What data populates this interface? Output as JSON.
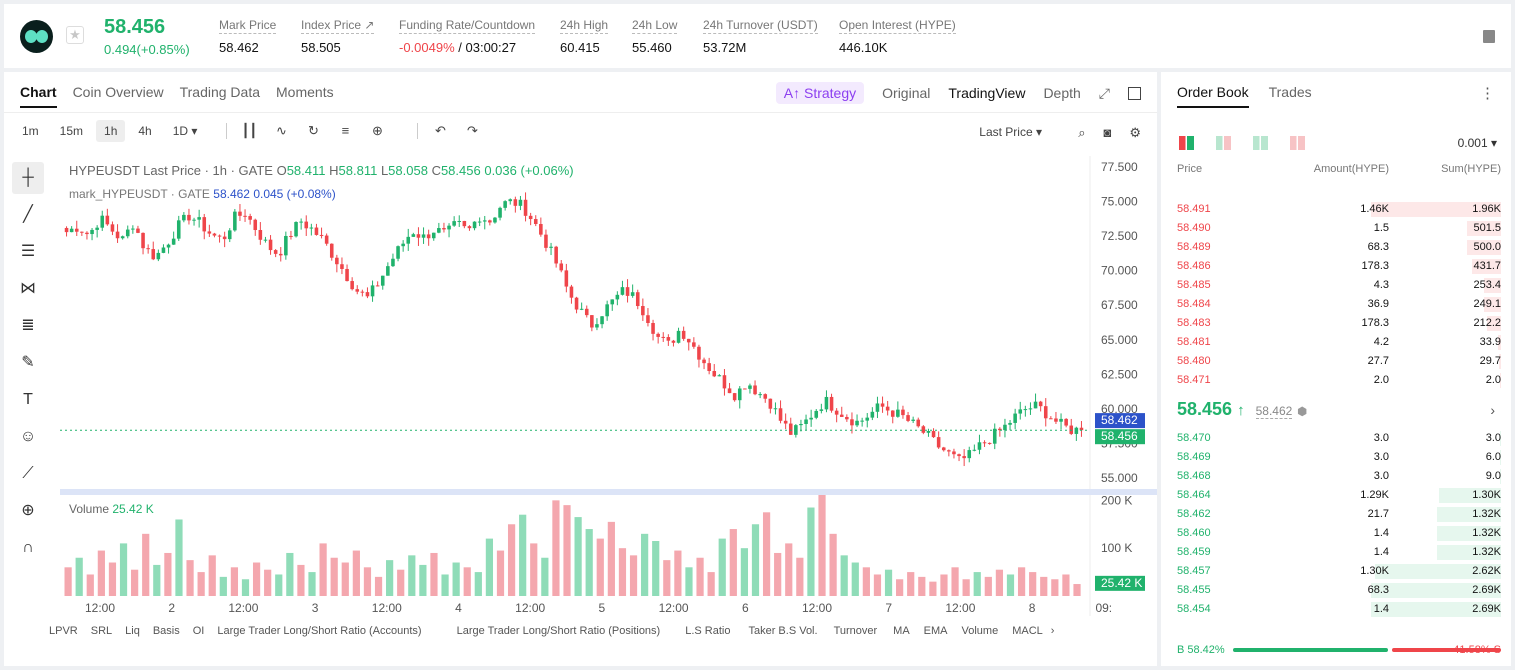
{
  "header": {
    "last_price": "58.456",
    "change": "0.494(+0.85%)",
    "stats": [
      {
        "label": "Mark Price",
        "value": "58.462"
      },
      {
        "label": "Index Price ↗",
        "value": "58.505"
      },
      {
        "label": "Funding Rate/Countdown",
        "value_neg": "-0.0049%",
        "value": " / 03:00:27"
      },
      {
        "label": "24h High",
        "value": "60.415"
      },
      {
        "label": "24h Low",
        "value": "55.460"
      },
      {
        "label": "24h Turnover (USDT)",
        "value": "53.72M"
      },
      {
        "label": "Open Interest (HYPE)",
        "value": "446.10K"
      }
    ]
  },
  "chart_tabs": [
    "Chart",
    "Coin Overview",
    "Trading Data",
    "Moments"
  ],
  "chart_views": {
    "strategy": "A↑ Strategy",
    "original": "Original",
    "tradingview": "TradingView",
    "depth": "Depth"
  },
  "timeframes": [
    "1m",
    "15m",
    "1h",
    "4h",
    "1D ▾"
  ],
  "last_price_select": "Last Price ▾",
  "legend": {
    "title": "HYPEUSDT Last Price · 1h · GATE ",
    "o_lbl": "O",
    "o": "58.411",
    "h_lbl": "H",
    "h": "58.811",
    "l_lbl": "L",
    "l": "58.058",
    "c_lbl": "C",
    "c": "58.456",
    "chg": "0.036 (+0.06%)",
    "mark_name": "mark_HYPEUSDT · GATE",
    "mark_val": "58.462",
    "mark_chg": "0.045 (+0.08%)"
  },
  "volume_legend": {
    "label": "Volume",
    "value": "25.42 K"
  },
  "indicators": [
    "LPVR",
    "SRL",
    "Liq",
    "Basis",
    "OI",
    "Large Trader Long/Short Ratio (Accounts)",
    "Large Trader Long/Short Ratio (Positions)",
    "L.S Ratio",
    "Taker B.S Vol.",
    "Turnover",
    "MA",
    "EMA",
    "Volume",
    "MACL"
  ],
  "chart_data": {
    "type": "candlestick",
    "y_ticks": [
      "77.500",
      "75.000",
      "72.500",
      "70.000",
      "67.500",
      "65.000",
      "62.500",
      "60.000",
      "57.500",
      "55.000"
    ],
    "ylim": [
      54.2,
      78.3
    ],
    "x_ticks": [
      "12:00",
      "2",
      "12:00",
      "3",
      "12:00",
      "4",
      "12:00",
      "5",
      "12:00",
      "6",
      "12:00",
      "7",
      "12:00",
      "8",
      "09:"
    ],
    "mark_price_tag": "58.462",
    "last_price_tag": "58.456",
    "close_path": [
      72.8,
      73.2,
      72.6,
      73.8,
      73.0,
      72.2,
      73.5,
      71.6,
      71.0,
      72.0,
      73.2,
      74.0,
      73.4,
      72.6,
      72.2,
      73.8,
      74.2,
      73.0,
      71.8,
      71.2,
      72.6,
      73.6,
      73.0,
      72.2,
      71.0,
      69.8,
      68.6,
      68.0,
      69.2,
      70.6,
      71.8,
      72.9,
      72.4,
      73.0,
      72.6,
      73.4,
      72.8,
      74.0,
      73.6,
      74.8,
      75.0,
      74.6,
      73.4,
      72.0,
      70.4,
      68.4,
      67.2,
      66.0,
      67.0,
      67.8,
      68.6,
      68.0,
      66.8,
      65.2,
      64.6,
      65.8,
      64.8,
      63.6,
      62.6,
      61.8,
      61.0,
      62.0,
      61.2,
      60.6,
      59.2,
      58.2,
      58.8,
      59.8,
      60.6,
      60.0,
      59.4,
      59.0,
      59.6,
      60.2,
      59.8,
      59.4,
      58.8,
      58.2,
      57.4,
      56.8,
      56.2,
      56.6,
      57.4,
      58.0,
      58.6,
      59.4,
      60.0,
      60.2,
      59.6,
      58.9,
      58.5,
      58.456
    ],
    "volume_ylim": [
      0,
      230
    ],
    "volume_ticks": [
      "200 K",
      "100 K"
    ],
    "volume_tag": "25.42 K",
    "volumes": [
      60,
      80,
      45,
      95,
      70,
      110,
      55,
      130,
      65,
      90,
      160,
      75,
      50,
      85,
      40,
      60,
      35,
      70,
      55,
      45,
      90,
      65,
      50,
      110,
      80,
      70,
      95,
      60,
      40,
      75,
      55,
      85,
      65,
      90,
      45,
      70,
      60,
      50,
      120,
      95,
      150,
      170,
      110,
      80,
      200,
      190,
      165,
      140,
      120,
      155,
      100,
      85,
      130,
      115,
      75,
      95,
      60,
      80,
      50,
      120,
      140,
      100,
      150,
      175,
      90,
      110,
      80,
      185,
      220,
      130,
      85,
      70,
      60,
      45,
      55,
      35,
      50,
      40,
      30,
      45,
      60,
      35,
      50,
      40,
      55,
      45,
      60,
      50,
      40,
      35,
      45,
      25
    ]
  },
  "orderbook": {
    "tabs": [
      "Order Book",
      "Trades"
    ],
    "precision": "0.001 ▾",
    "headers": {
      "price": "Price",
      "amount": "Amount(HYPE)",
      "sum": "Sum(HYPE)"
    },
    "asks": [
      {
        "price": "58.491",
        "amount": "1.46K",
        "sum": "1.96K",
        "depth": 1.0
      },
      {
        "price": "58.490",
        "amount": "1.5",
        "sum": "501.5",
        "depth": 0.26
      },
      {
        "price": "58.489",
        "amount": "68.3",
        "sum": "500.0",
        "depth": 0.26
      },
      {
        "price": "58.486",
        "amount": "178.3",
        "sum": "431.7",
        "depth": 0.22
      },
      {
        "price": "58.485",
        "amount": "4.3",
        "sum": "253.4",
        "depth": 0.13
      },
      {
        "price": "58.484",
        "amount": "36.9",
        "sum": "249.1",
        "depth": 0.13
      },
      {
        "price": "58.483",
        "amount": "178.3",
        "sum": "212.2",
        "depth": 0.11
      },
      {
        "price": "58.481",
        "amount": "4.2",
        "sum": "33.9",
        "depth": 0.02
      },
      {
        "price": "58.480",
        "amount": "27.7",
        "sum": "29.7",
        "depth": 0.015
      },
      {
        "price": "58.471",
        "amount": "2.0",
        "sum": "2.0",
        "depth": 0.001
      }
    ],
    "mid_price": "58.456",
    "mid_arrow": "↑",
    "mid_mark": "58.462",
    "bids": [
      {
        "price": "58.470",
        "amount": "3.0",
        "sum": "3.0",
        "depth": 0.001
      },
      {
        "price": "58.469",
        "amount": "3.0",
        "sum": "6.0",
        "depth": 0.002
      },
      {
        "price": "58.468",
        "amount": "3.0",
        "sum": "9.0",
        "depth": 0.003
      },
      {
        "price": "58.464",
        "amount": "1.29K",
        "sum": "1.30K",
        "depth": 0.48
      },
      {
        "price": "58.462",
        "amount": "21.7",
        "sum": "1.32K",
        "depth": 0.49
      },
      {
        "price": "58.460",
        "amount": "1.4",
        "sum": "1.32K",
        "depth": 0.49
      },
      {
        "price": "58.459",
        "amount": "1.4",
        "sum": "1.32K",
        "depth": 0.49
      },
      {
        "price": "58.457",
        "amount": "1.30K",
        "sum": "2.62K",
        "depth": 0.97
      },
      {
        "price": "58.455",
        "amount": "68.3",
        "sum": "2.69K",
        "depth": 1.0
      },
      {
        "price": "58.454",
        "amount": "1.4",
        "sum": "2.69K",
        "depth": 1.0
      }
    ],
    "buy_ratio": "B 58.42%",
    "sell_ratio": "41.58% S",
    "buy_fraction": 0.5842
  }
}
